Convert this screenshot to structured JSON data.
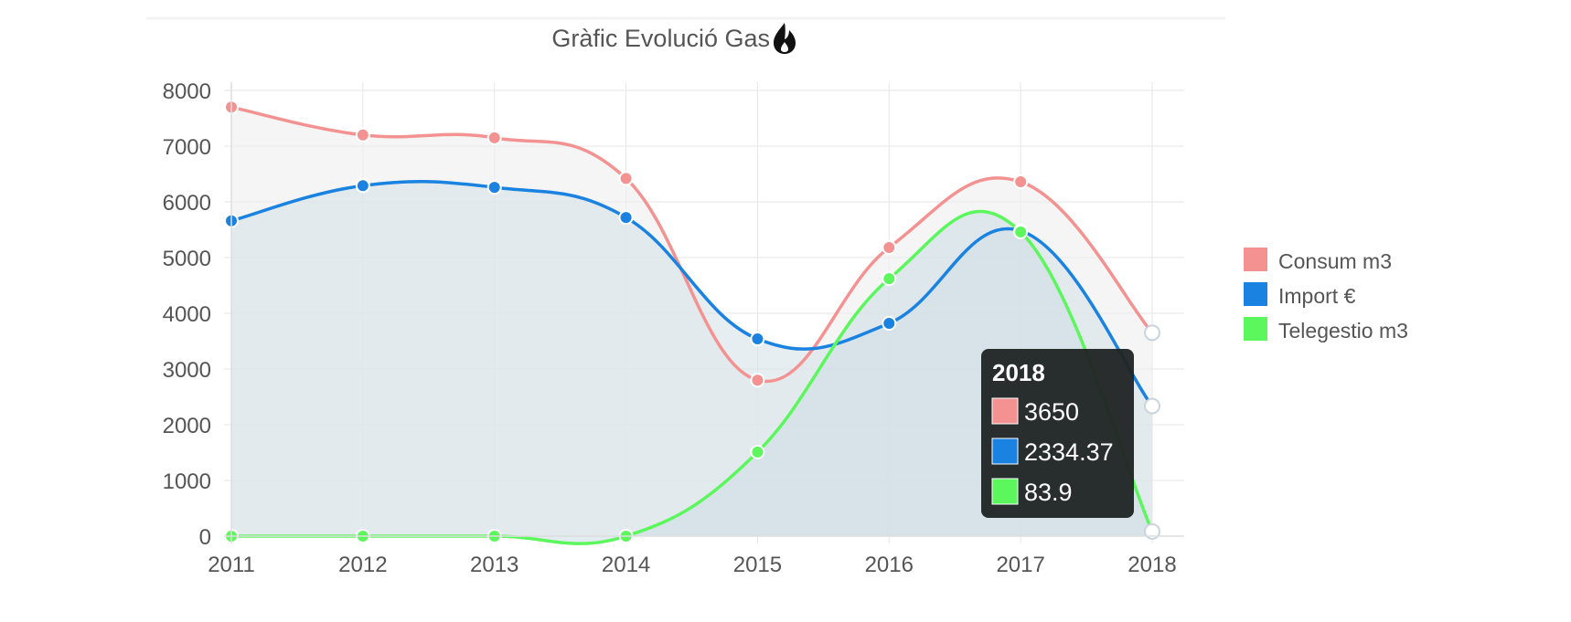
{
  "chart_data": {
    "type": "line",
    "title": "Gràfic Evolució Gas",
    "title_icon": "flame-icon",
    "categories": [
      "2011",
      "2012",
      "2013",
      "2014",
      "2015",
      "2016",
      "2017",
      "2018"
    ],
    "yticks": [
      "0",
      "1000",
      "2000",
      "3000",
      "4000",
      "5000",
      "6000",
      "7000",
      "8000"
    ],
    "ylim": [
      0,
      8000
    ],
    "grid": true,
    "legend_position": "right",
    "series": [
      {
        "name": "Consum m3",
        "color": "#f49292",
        "values": [
          7700,
          7200,
          7150,
          6420,
          2800,
          5180,
          6360,
          3650
        ],
        "fill": "#f0f0f0"
      },
      {
        "name": "Import €",
        "color": "#1a82e0",
        "values": [
          5660,
          6290,
          6260,
          5720,
          3540,
          3820,
          5480,
          2334.37
        ],
        "fill": "#d7e2ea"
      },
      {
        "name": "Telegestio m3",
        "color": "#5cf75c",
        "values": [
          0,
          0,
          0,
          0,
          1510,
          4620,
          5460,
          83.9
        ],
        "fill": "#cfdde6"
      }
    ],
    "tooltip": {
      "title": "2018",
      "items": [
        {
          "color": "#f49292",
          "value": "3650"
        },
        {
          "color": "#1a82e0",
          "value": "2334.37"
        },
        {
          "color": "#5cf75c",
          "value": "83.9"
        }
      ]
    }
  }
}
